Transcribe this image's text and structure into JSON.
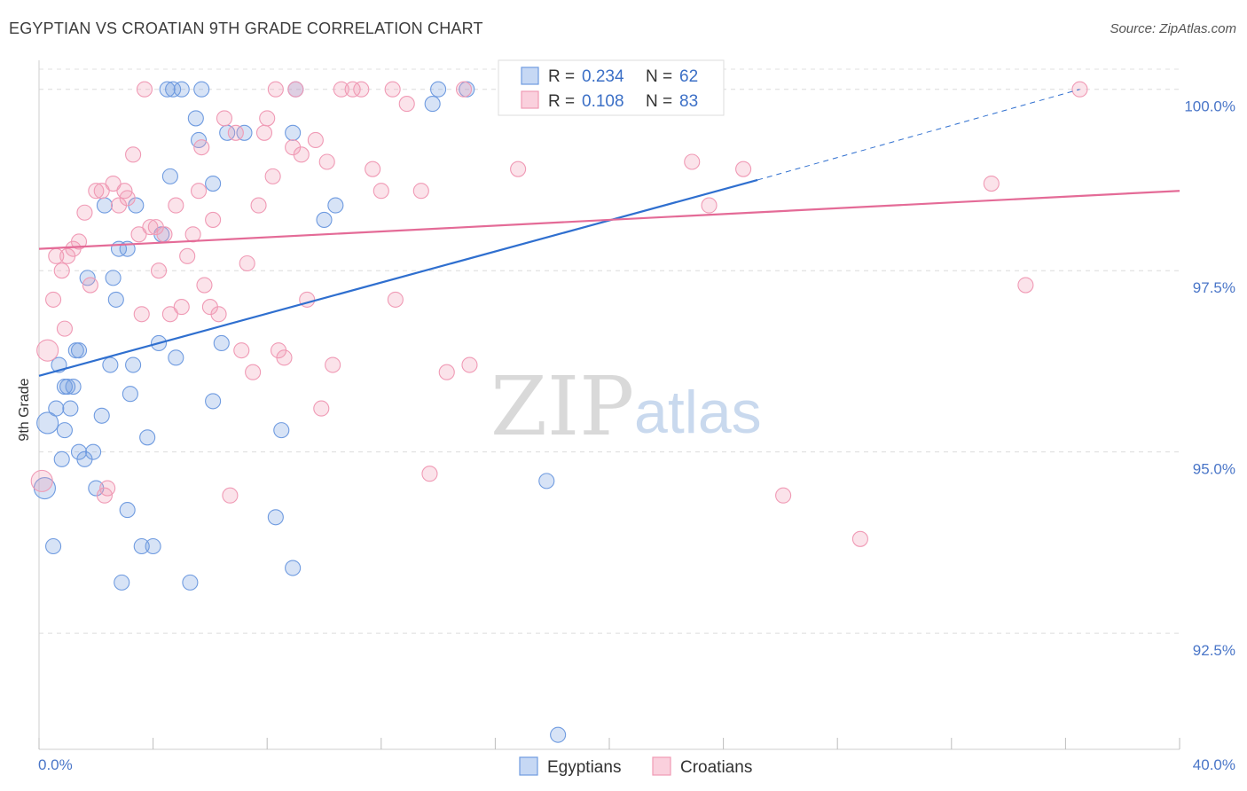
{
  "header": {
    "title": "EGYPTIAN VS CROATIAN 9TH GRADE CORRELATION CHART",
    "source": "Source: ZipAtlas.com"
  },
  "watermark": {
    "zip": "ZIP",
    "atlas": "atlas"
  },
  "legend": {
    "r_label": "R =",
    "n_label": "N =",
    "items": [
      {
        "r": "0.234",
        "n": "62",
        "color": "#6f9be0"
      },
      {
        "r": "0.108",
        "n": "83",
        "color": "#f09ab5"
      }
    ]
  },
  "bottom_legend": [
    "Egyptians",
    "Croatians"
  ],
  "chart_data": {
    "type": "scatter",
    "title": "EGYPTIAN VS CROATIAN 9TH GRADE CORRELATION CHART",
    "xlabel": "",
    "ylabel": "9th Grade",
    "xlim": [
      0,
      40
    ],
    "ylim": [
      90.9,
      100.4
    ],
    "x_tick_labels": [
      "0.0%",
      "40.0%"
    ],
    "y_ticks": [
      92.5,
      95.0,
      97.5,
      100.0
    ],
    "y_tick_labels": [
      "92.5%",
      "95.0%",
      "97.5%",
      "100.0%"
    ],
    "grid": true,
    "legend_position": "top-center",
    "series": [
      {
        "name": "Egyptians",
        "color": "#6f9be0",
        "line_color": "#2f6fcf",
        "r": 0.234,
        "n": 62,
        "trend": {
          "x": [
            0,
            25.2
          ],
          "y": [
            96.05,
            98.75
          ],
          "dashed_to": [
            36.5,
            100.0
          ]
        },
        "points": [
          [
            0.2,
            94.5
          ],
          [
            0.3,
            95.4
          ],
          [
            0.5,
            93.7
          ],
          [
            0.6,
            95.6
          ],
          [
            0.7,
            96.2
          ],
          [
            0.8,
            94.9
          ],
          [
            0.9,
            95.3
          ],
          [
            1.0,
            95.9
          ],
          [
            1.1,
            95.6
          ],
          [
            1.2,
            95.9
          ],
          [
            1.4,
            96.4
          ],
          [
            1.4,
            95.0
          ],
          [
            1.6,
            94.9
          ],
          [
            1.7,
            97.4
          ],
          [
            1.9,
            95.0
          ],
          [
            2.0,
            94.5
          ],
          [
            2.2,
            95.5
          ],
          [
            2.3,
            98.4
          ],
          [
            2.5,
            96.2
          ],
          [
            2.6,
            97.4
          ],
          [
            2.7,
            97.1
          ],
          [
            2.8,
            97.8
          ],
          [
            3.1,
            94.2
          ],
          [
            3.1,
            97.8
          ],
          [
            3.2,
            95.8
          ],
          [
            3.4,
            98.4
          ],
          [
            3.6,
            93.7
          ],
          [
            3.8,
            95.2
          ],
          [
            4.0,
            93.7
          ],
          [
            4.2,
            96.5
          ],
          [
            4.3,
            98.0
          ],
          [
            4.5,
            100.0
          ],
          [
            4.6,
            98.8
          ],
          [
            4.7,
            100.0
          ],
          [
            4.8,
            96.3
          ],
          [
            5.0,
            100.0
          ],
          [
            5.3,
            93.2
          ],
          [
            5.6,
            99.3
          ],
          [
            5.7,
            100.0
          ],
          [
            6.1,
            98.7
          ],
          [
            6.1,
            95.7
          ],
          [
            6.4,
            96.5
          ],
          [
            6.6,
            99.4
          ],
          [
            7.2,
            99.4
          ],
          [
            8.3,
            94.1
          ],
          [
            8.5,
            95.3
          ],
          [
            8.9,
            93.4
          ],
          [
            8.9,
            99.4
          ],
          [
            9.0,
            100.0
          ],
          [
            10.0,
            98.2
          ],
          [
            10.4,
            98.4
          ],
          [
            13.8,
            99.8
          ],
          [
            14.0,
            100.0
          ],
          [
            15.0,
            100.0
          ],
          [
            17.8,
            94.6
          ],
          [
            18.2,
            91.1
          ],
          [
            19.0,
            100.0
          ],
          [
            2.9,
            93.2
          ],
          [
            1.3,
            96.4
          ],
          [
            0.9,
            95.9
          ],
          [
            3.3,
            96.2
          ],
          [
            5.5,
            99.6
          ]
        ]
      },
      {
        "name": "Croatians",
        "color": "#f09ab5",
        "line_color": "#e46b97",
        "r": 0.108,
        "n": 83,
        "trend": {
          "x": [
            0,
            40
          ],
          "y": [
            97.8,
            98.6
          ]
        },
        "points": [
          [
            0.1,
            94.6
          ],
          [
            0.3,
            96.4
          ],
          [
            0.5,
            97.1
          ],
          [
            0.6,
            97.7
          ],
          [
            0.8,
            97.5
          ],
          [
            0.9,
            96.7
          ],
          [
            1.0,
            97.7
          ],
          [
            1.2,
            97.8
          ],
          [
            1.4,
            97.9
          ],
          [
            1.6,
            98.3
          ],
          [
            1.8,
            97.3
          ],
          [
            2.0,
            98.6
          ],
          [
            2.2,
            98.6
          ],
          [
            2.4,
            94.5
          ],
          [
            2.6,
            98.7
          ],
          [
            2.8,
            98.4
          ],
          [
            3.0,
            98.6
          ],
          [
            3.1,
            98.5
          ],
          [
            3.3,
            99.1
          ],
          [
            3.5,
            98.0
          ],
          [
            3.6,
            96.9
          ],
          [
            3.9,
            98.1
          ],
          [
            4.1,
            98.1
          ],
          [
            4.2,
            97.5
          ],
          [
            4.4,
            98.0
          ],
          [
            4.6,
            96.9
          ],
          [
            4.8,
            98.4
          ],
          [
            5.0,
            97.0
          ],
          [
            5.2,
            97.7
          ],
          [
            5.4,
            98.0
          ],
          [
            5.6,
            98.6
          ],
          [
            5.8,
            97.3
          ],
          [
            6.0,
            97.0
          ],
          [
            6.1,
            98.2
          ],
          [
            6.3,
            96.9
          ],
          [
            6.5,
            99.6
          ],
          [
            6.7,
            94.4
          ],
          [
            6.9,
            99.4
          ],
          [
            7.1,
            96.4
          ],
          [
            7.3,
            97.6
          ],
          [
            7.5,
            96.1
          ],
          [
            7.7,
            98.4
          ],
          [
            7.9,
            99.4
          ],
          [
            8.0,
            99.6
          ],
          [
            8.2,
            98.8
          ],
          [
            8.4,
            96.4
          ],
          [
            8.6,
            96.3
          ],
          [
            8.9,
            99.2
          ],
          [
            9.0,
            100.0
          ],
          [
            9.2,
            99.1
          ],
          [
            9.4,
            97.1
          ],
          [
            9.7,
            99.3
          ],
          [
            9.9,
            95.6
          ],
          [
            10.1,
            99.0
          ],
          [
            10.3,
            96.2
          ],
          [
            10.6,
            100.0
          ],
          [
            11.0,
            100.0
          ],
          [
            11.3,
            100.0
          ],
          [
            11.7,
            98.9
          ],
          [
            12.0,
            98.6
          ],
          [
            12.4,
            100.0
          ],
          [
            12.9,
            99.8
          ],
          [
            13.4,
            98.6
          ],
          [
            13.7,
            94.7
          ],
          [
            14.3,
            96.1
          ],
          [
            14.9,
            100.0
          ],
          [
            15.1,
            96.2
          ],
          [
            16.8,
            98.9
          ],
          [
            18.1,
            100.0
          ],
          [
            22.5,
            100.0
          ],
          [
            22.9,
            99.0
          ],
          [
            23.5,
            98.4
          ],
          [
            24.7,
            98.9
          ],
          [
            26.1,
            94.4
          ],
          [
            28.8,
            93.8
          ],
          [
            33.4,
            98.7
          ],
          [
            34.6,
            97.3
          ],
          [
            36.5,
            100.0
          ],
          [
            3.7,
            100.0
          ],
          [
            2.3,
            94.4
          ],
          [
            5.7,
            99.2
          ],
          [
            8.3,
            100.0
          ],
          [
            12.5,
            97.1
          ]
        ]
      }
    ]
  }
}
